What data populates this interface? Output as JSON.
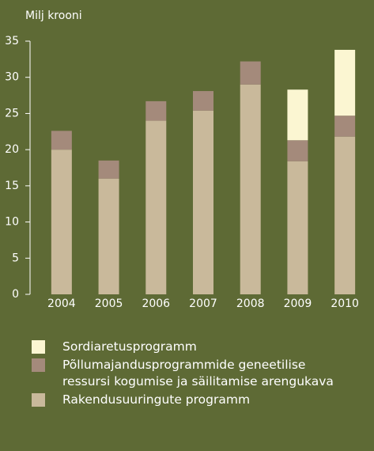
{
  "chart_data": {
    "type": "stacked_bar",
    "title": "Milj krooni",
    "categories": [
      "2004",
      "2005",
      "2006",
      "2007",
      "2008",
      "2009",
      "2010"
    ],
    "series": [
      {
        "name": "Rakendusuuringute programm",
        "color": "#c9b99b",
        "values": [
          20,
          16,
          24,
          25.4,
          29,
          18.4,
          21.8
        ]
      },
      {
        "name": "Põllumajandusprogrammide geneetilise ressursi kogumise ja säilitamise arengukava",
        "color": "#a48a7b",
        "values": [
          2.6,
          2.5,
          2.7,
          2.7,
          3.2,
          2.9,
          2.9
        ]
      },
      {
        "name": "Sordiaretusprogramm",
        "color": "#fbf6d2",
        "values": [
          null,
          null,
          null,
          null,
          null,
          7.0,
          9.1
        ]
      }
    ],
    "ylim": [
      0,
      35
    ],
    "yticks": [
      0,
      5,
      10,
      15,
      20,
      25,
      30,
      35
    ]
  }
}
